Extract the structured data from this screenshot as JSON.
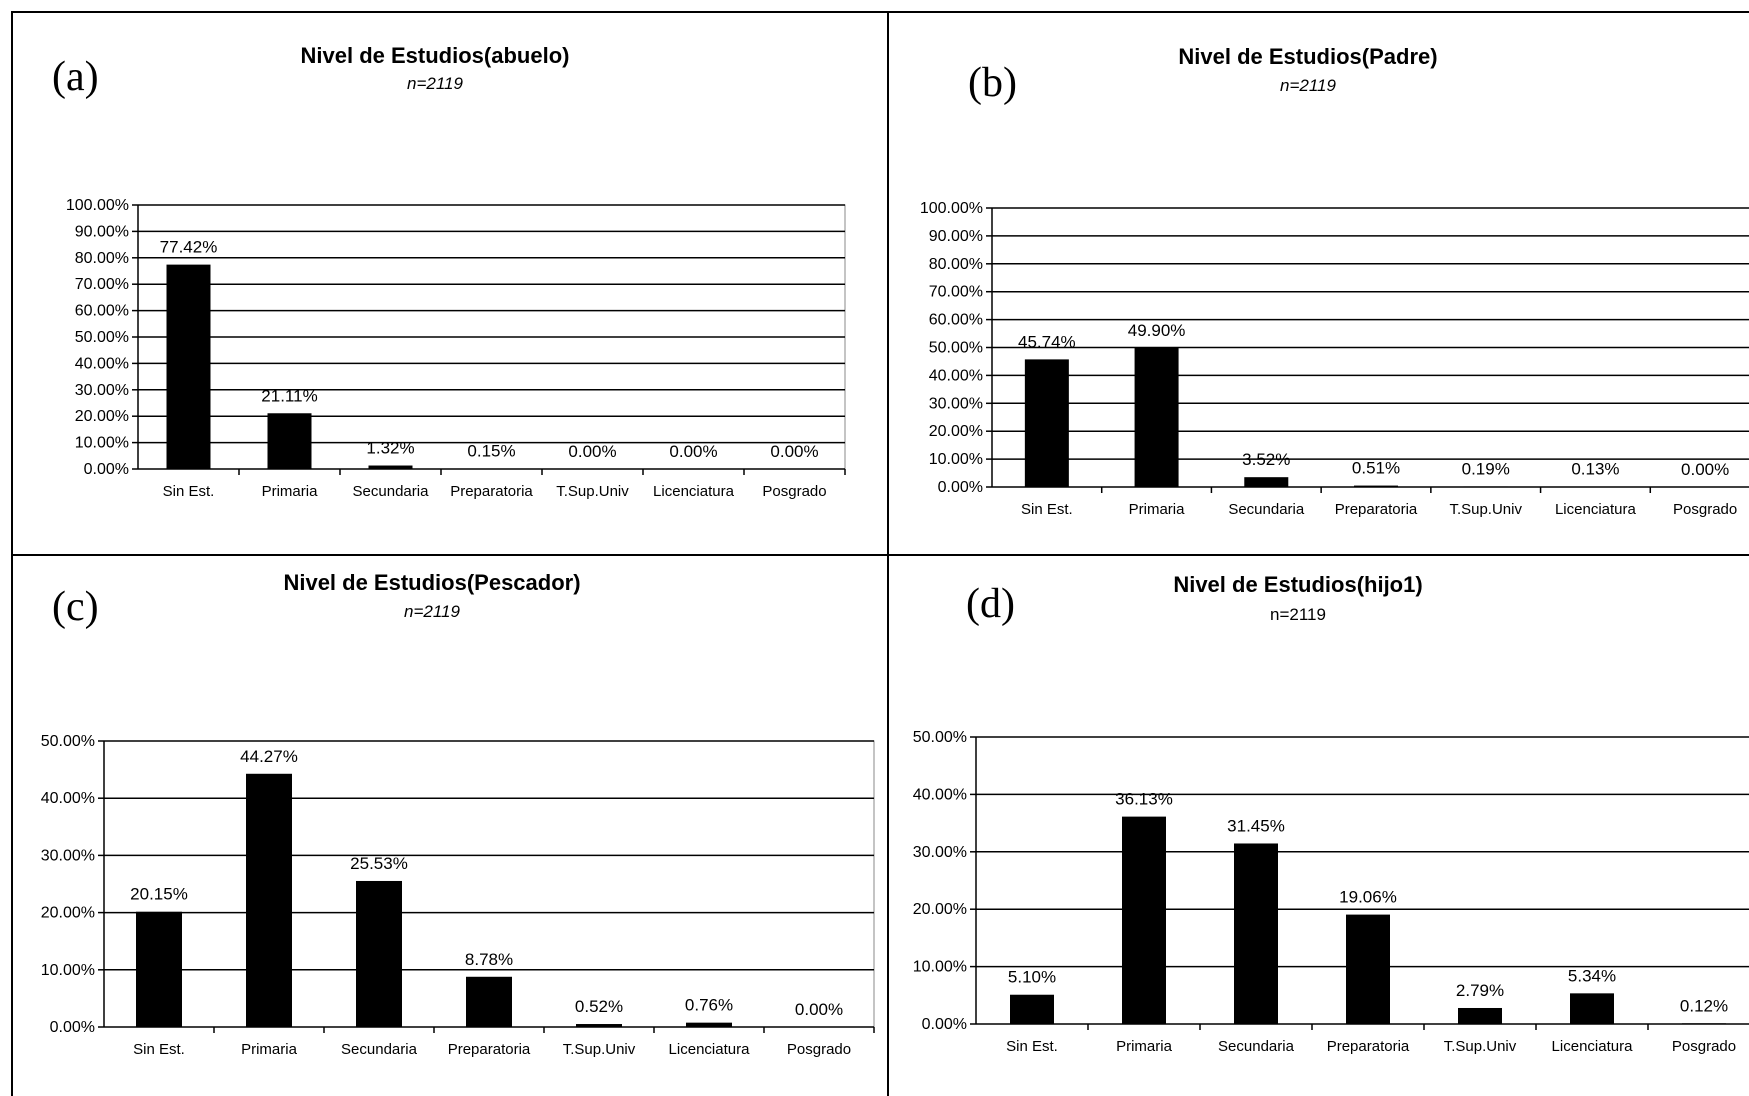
{
  "chart_data": [
    {
      "panel": "(a)",
      "type": "bar",
      "title": "Nivel de Estudios(abuelo)",
      "subtitle": "n=2119",
      "subtitle_italic": true,
      "categories": [
        "Sin Est.",
        "Primaria",
        "Secundaria",
        "Preparatoria",
        "T.Sup.Univ",
        "Licenciatura",
        "Posgrado"
      ],
      "values": [
        77.42,
        21.11,
        1.32,
        0.15,
        0.0,
        0.0,
        0.0
      ],
      "value_labels": [
        "77.42%",
        "21.11%",
        "1.32%",
        "0.15%",
        "0.00%",
        "0.00%",
        "0.00%"
      ],
      "yticks": [
        "0.00%",
        "10.00%",
        "20.00%",
        "30.00%",
        "40.00%",
        "50.00%",
        "60.00%",
        "70.00%",
        "80.00%",
        "90.00%",
        "100.00%"
      ],
      "ylim": [
        0,
        100
      ],
      "grid": true,
      "bar_color": "#000000"
    },
    {
      "panel": "(b)",
      "type": "bar",
      "title": "Nivel de Estudios(Padre)",
      "subtitle": "n=2119",
      "subtitle_italic": true,
      "categories": [
        "Sin Est.",
        "Primaria",
        "Secundaria",
        "Preparatoria",
        "T.Sup.Univ",
        "Licenciatura",
        "Posgrado"
      ],
      "values": [
        45.74,
        49.9,
        3.52,
        0.51,
        0.19,
        0.13,
        0.0
      ],
      "value_labels": [
        "45.74%",
        "49.90%",
        "3.52%",
        "0.51%",
        "0.19%",
        "0.13%",
        "0.00%"
      ],
      "yticks": [
        "0.00%",
        "10.00%",
        "20.00%",
        "30.00%",
        "40.00%",
        "50.00%",
        "60.00%",
        "70.00%",
        "80.00%",
        "90.00%",
        "100.00%"
      ],
      "ylim": [
        0,
        100
      ],
      "grid": true,
      "bar_color": "#000000"
    },
    {
      "panel": "(c)",
      "type": "bar",
      "title": "Nivel de Estudios(Pescador)",
      "subtitle": "n=2119",
      "subtitle_italic": true,
      "categories": [
        "Sin Est.",
        "Primaria",
        "Secundaria",
        "Preparatoria",
        "T.Sup.Univ",
        "Licenciatura",
        "Posgrado"
      ],
      "values": [
        20.15,
        44.27,
        25.53,
        8.78,
        0.52,
        0.76,
        0.0
      ],
      "value_labels": [
        "20.15%",
        "44.27%",
        "25.53%",
        "8.78%",
        "0.52%",
        "0.76%",
        "0.00%"
      ],
      "yticks": [
        "0.00%",
        "10.00%",
        "20.00%",
        "30.00%",
        "40.00%",
        "50.00%"
      ],
      "ylim": [
        0,
        50
      ],
      "grid": true,
      "bar_color": "#000000"
    },
    {
      "panel": "(d)",
      "type": "bar",
      "title": "Nivel de Estudios(hijo1)",
      "subtitle": "n=2119",
      "subtitle_italic": false,
      "categories": [
        "Sin Est.",
        "Primaria",
        "Secundaria",
        "Preparatoria",
        "T.Sup.Univ",
        "Licenciatura",
        "Posgrado"
      ],
      "values": [
        5.1,
        36.13,
        31.45,
        19.06,
        2.79,
        5.34,
        0.12
      ],
      "value_labels": [
        "5.10%",
        "36.13%",
        "31.45%",
        "19.06%",
        "2.79%",
        "5.34%",
        "0.12%"
      ],
      "yticks": [
        "0.00%",
        "10.00%",
        "20.00%",
        "30.00%",
        "40.00%",
        "50.00%"
      ],
      "ylim": [
        0,
        50
      ],
      "grid": true,
      "bar_color": "#000000"
    }
  ]
}
